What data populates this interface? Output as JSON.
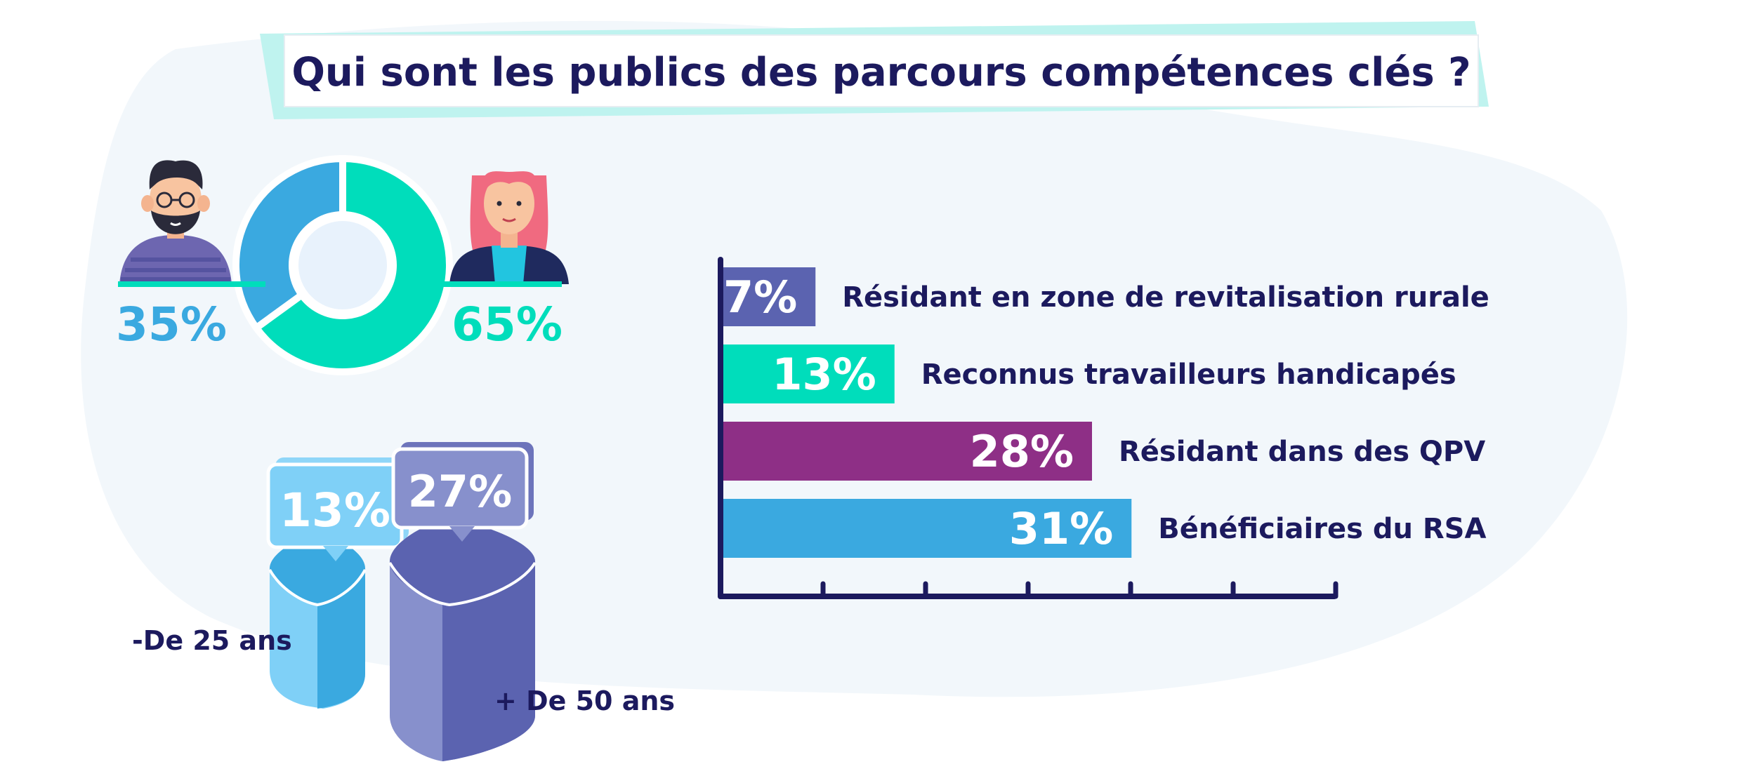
{
  "title": "Qui sont les publics des parcours compétences clés ?",
  "colors": {
    "navy": "#1c1a5e",
    "blue": "#3aa9e0",
    "teal": "#00ddbb",
    "purple": "#8e2f86",
    "slate": "#5b63b0",
    "bg_blob": "#f2f7fb"
  },
  "chart_data": [
    {
      "type": "pie",
      "title": "",
      "slices": [
        {
          "label": "35%",
          "value": 35,
          "color": "#3aa9e0",
          "icon": "man-avatar-icon"
        },
        {
          "label": "65%",
          "value": 65,
          "color": "#00ddbb",
          "icon": "woman-avatar-icon"
        }
      ]
    },
    {
      "type": "bar",
      "title": "",
      "values": [
        13,
        27
      ],
      "labels": [
        "13%",
        "27%"
      ],
      "categories": [
        "-De 25 ans",
        "+ De 50 ans"
      ],
      "colors": [
        "#3aa9e0",
        "#5b63b0"
      ]
    },
    {
      "type": "bar",
      "orientation": "horizontal",
      "title": "",
      "categories": [
        "Résidant en zone de revitalisation rurale",
        "Reconnus travailleurs handicapés",
        "Résidant dans des QPV",
        "Bénéficiaires du RSA"
      ],
      "values": [
        7,
        13,
        28,
        31
      ],
      "labels": [
        "7%",
        "13%",
        "28%",
        "31%"
      ],
      "colors": [
        "#5b63b0",
        "#00ddbb",
        "#8e2f86",
        "#3aa9e0"
      ],
      "xlim": [
        0,
        35
      ]
    }
  ]
}
